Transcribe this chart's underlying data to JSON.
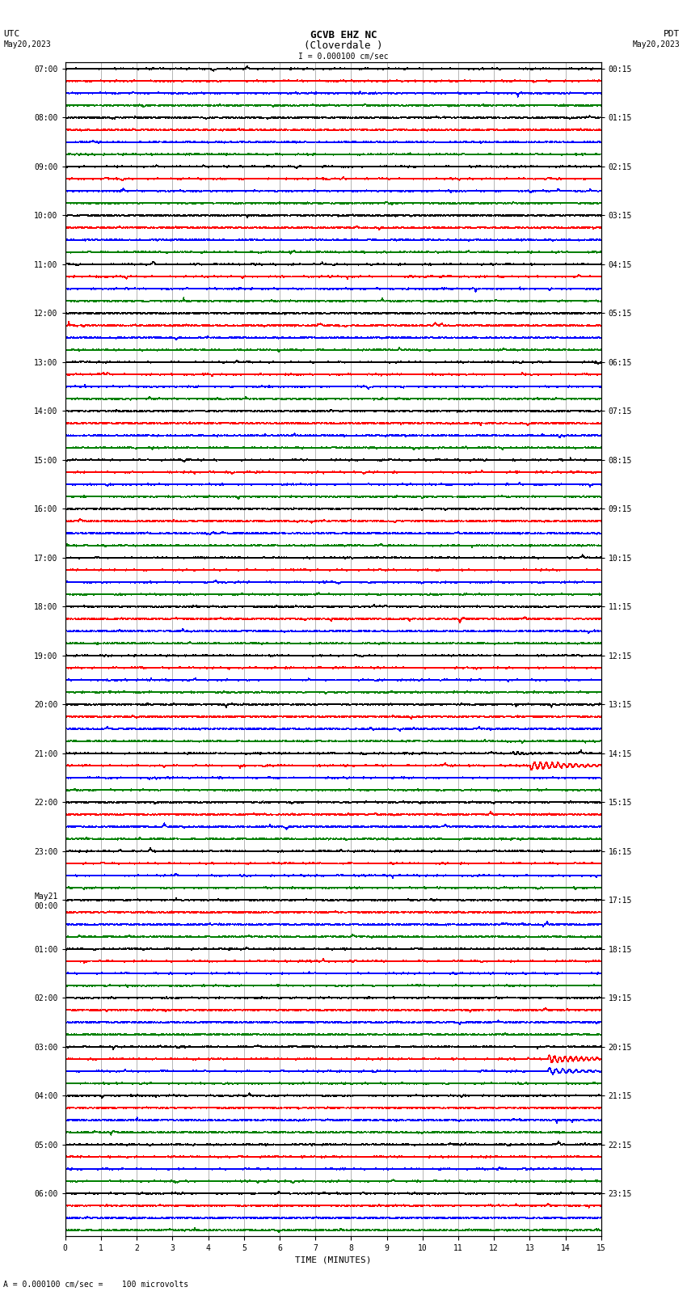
{
  "title_line1": "GCVB EHZ NC",
  "title_line2": "(Cloverdale )",
  "scale_label": "I = 0.000100 cm/sec",
  "left_label_top": "UTC",
  "left_label_date": "May20,2023",
  "right_label_top": "PDT",
  "right_label_date": "May20,2023",
  "xlabel": "TIME (MINUTES)",
  "footer_text": "= 0.000100 cm/sec =    100 microvolts",
  "utc_times": [
    "07:00",
    "08:00",
    "09:00",
    "10:00",
    "11:00",
    "12:00",
    "13:00",
    "14:00",
    "15:00",
    "16:00",
    "17:00",
    "18:00",
    "19:00",
    "20:00",
    "21:00",
    "22:00",
    "23:00",
    "May21\n00:00",
    "01:00",
    "02:00",
    "03:00",
    "04:00",
    "05:00",
    "06:00"
  ],
  "pdt_times": [
    "00:15",
    "01:15",
    "02:15",
    "03:15",
    "04:15",
    "05:15",
    "06:15",
    "07:15",
    "08:15",
    "09:15",
    "10:15",
    "11:15",
    "12:15",
    "13:15",
    "14:15",
    "15:15",
    "16:15",
    "17:15",
    "18:15",
    "19:15",
    "20:15",
    "21:15",
    "22:15",
    "23:15"
  ],
  "n_rows": 96,
  "n_hours": 24,
  "n_minutes": 15,
  "colors": [
    "black",
    "red",
    "blue",
    "green"
  ],
  "bg_color": "white",
  "noise_amplitude": 0.03,
  "grid_color": "#999999",
  "grid_linewidth": 0.5,
  "trace_linewidth": 0.5,
  "figsize": [
    8.5,
    16.13
  ],
  "eq1_row": 57,
  "eq1_minute": 13.0,
  "eq2_row": 81,
  "eq2_minute": 13.5
}
